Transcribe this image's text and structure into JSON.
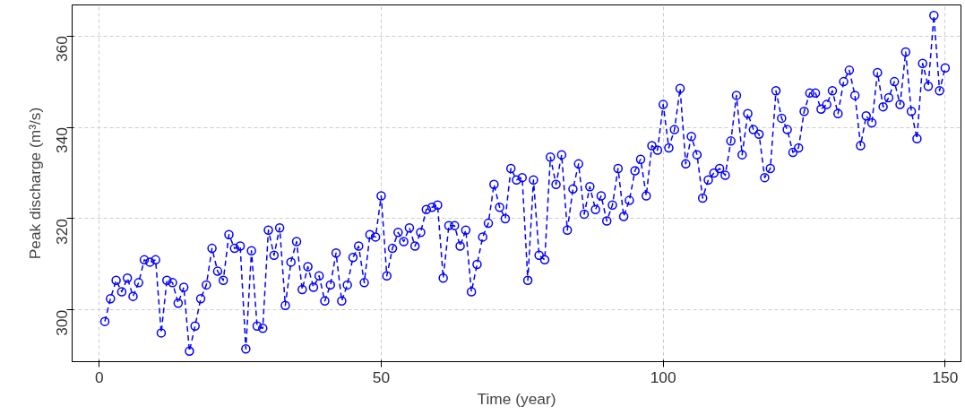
{
  "chart_data": {
    "type": "line",
    "xlabel": "Time (year)",
    "ylabel": "Peak discharge (m³/s)",
    "xlim": [
      -4.8,
      152.8
    ],
    "ylim": [
      288.7,
      366.8
    ],
    "xticks": [
      0,
      50,
      100,
      150
    ],
    "yticks": [
      300,
      320,
      340,
      360
    ],
    "grid": true,
    "marker": "circle",
    "line_style": "dashed",
    "x": [
      1,
      2,
      3,
      4,
      5,
      6,
      7,
      8,
      9,
      10,
      11,
      12,
      13,
      14,
      15,
      16,
      17,
      18,
      19,
      20,
      21,
      22,
      23,
      24,
      25,
      26,
      27,
      28,
      29,
      30,
      31,
      32,
      33,
      34,
      35,
      36,
      37,
      38,
      39,
      40,
      41,
      42,
      43,
      44,
      45,
      46,
      47,
      48,
      49,
      50,
      51,
      52,
      53,
      54,
      55,
      56,
      57,
      58,
      59,
      60,
      61,
      62,
      63,
      64,
      65,
      66,
      67,
      68,
      69,
      70,
      71,
      72,
      73,
      74,
      75,
      76,
      77,
      78,
      79,
      80,
      81,
      82,
      83,
      84,
      85,
      86,
      87,
      88,
      89,
      90,
      91,
      92,
      93,
      94,
      95,
      96,
      97,
      98,
      99,
      100,
      101,
      102,
      103,
      104,
      105,
      106,
      107,
      108,
      109,
      110,
      111,
      112,
      113,
      114,
      115,
      116,
      117,
      118,
      119,
      120,
      121,
      122,
      123,
      124,
      125,
      126,
      127,
      128,
      129,
      130,
      131,
      132,
      133,
      134,
      135,
      136,
      137,
      138,
      139,
      140,
      141,
      142,
      143,
      144,
      145,
      146,
      147,
      148,
      149,
      150
    ],
    "series": [
      {
        "color": "#0000ff",
        "values": [
          297.5,
          302.5,
          306.5,
          304,
          307,
          303,
          306,
          311,
          310.5,
          311,
          295,
          306.5,
          306,
          301.5,
          305,
          291,
          296.5,
          302.5,
          305.5,
          313.5,
          308.5,
          306.5,
          316.5,
          313.5,
          314,
          291.5,
          313,
          296.5,
          296,
          317.5,
          312,
          318,
          301,
          310.5,
          315,
          304.5,
          309.5,
          305,
          307.5,
          302,
          305.5,
          312.5,
          302,
          305.5,
          311.5,
          314,
          306,
          316.5,
          316,
          325,
          307.5,
          313.5,
          317,
          315,
          318,
          314,
          317,
          322,
          322.5,
          323,
          307,
          318.5,
          318.5,
          314,
          317.5,
          304,
          310,
          316,
          319,
          327.5,
          322.5,
          320,
          331,
          328.5,
          329,
          306.5,
          328.5,
          312,
          311,
          333.5,
          327.5,
          334,
          317.5,
          326.5,
          332,
          321,
          327,
          322,
          325,
          319.5,
          323,
          331,
          320.5,
          324,
          330.5,
          333,
          325,
          336,
          335,
          345,
          335.5,
          339.5,
          348.5,
          332,
          338,
          334,
          324.5,
          328.5,
          330,
          331,
          329.5,
          337,
          347,
          334,
          343,
          339.5,
          338.5,
          329,
          331,
          348,
          342,
          339.5,
          334.5,
          335.5,
          343.5,
          347.5,
          347.5,
          344,
          345,
          348,
          343,
          350,
          352.5,
          347,
          336,
          342.5,
          341,
          352,
          344.5,
          346.5,
          350,
          345,
          356.5,
          343.5,
          337.5,
          354,
          349,
          364.5,
          348,
          353
        ]
      }
    ]
  }
}
